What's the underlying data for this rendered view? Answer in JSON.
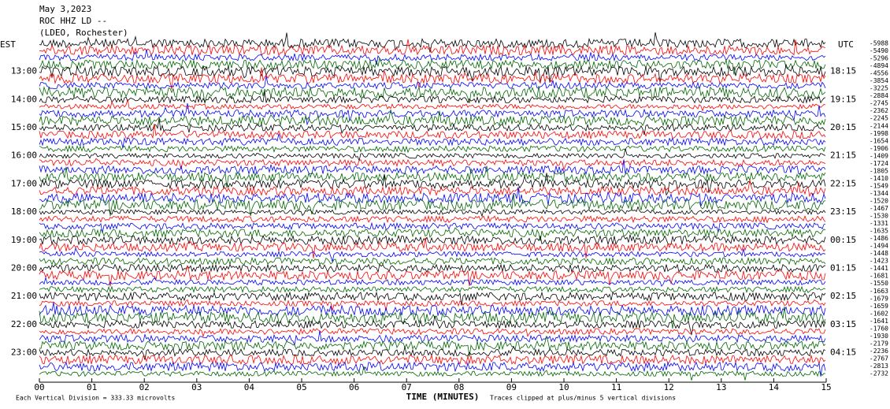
{
  "header": {
    "date": "May 3,2023",
    "station": "ROC HHZ LD --",
    "network": "(LDEO, Rochester)"
  },
  "left_zone": "EST",
  "right_zone": "UTC",
  "left_hours": [
    "13:00",
    "14:00",
    "15:00",
    "16:00",
    "17:00",
    "18:00",
    "19:00",
    "20:00",
    "21:00",
    "22:00",
    "23:00"
  ],
  "right_hours": [
    "18:15",
    "19:15",
    "20:15",
    "21:15",
    "22:15",
    "23:15",
    "00:15",
    "01:15",
    "02:15",
    "03:15",
    "04:15"
  ],
  "trace_offsets": [
    -5988,
    -5490,
    -5296,
    -4894,
    -4556,
    -3854,
    -3225,
    -2884,
    -2745,
    -2362,
    -2245,
    -2144,
    -1998,
    -1654,
    -1906,
    -1409,
    -1724,
    -1805,
    -1410,
    -1549,
    -1344,
    -1520,
    -1467,
    -1530,
    -1331,
    -1635,
    -1486,
    -1494,
    -1448,
    -1423,
    -1441,
    -1681,
    -1550,
    -1663,
    -1679,
    -1659,
    -1602,
    -1641,
    -1760,
    -1930,
    -2179,
    -2236,
    -2767,
    -2813,
    -2732
  ],
  "x_ticks": [
    "00",
    "01",
    "02",
    "03",
    "04",
    "05",
    "06",
    "07",
    "08",
    "09",
    "10",
    "11",
    "12",
    "13",
    "14",
    "15"
  ],
  "x_title": "TIME (MINUTES)",
  "footer": {
    "scale": "Each Vertical Division =  333.33 microvolts",
    "clip": "Traces clipped at plus/minus 5 vertical divisions"
  }
}
